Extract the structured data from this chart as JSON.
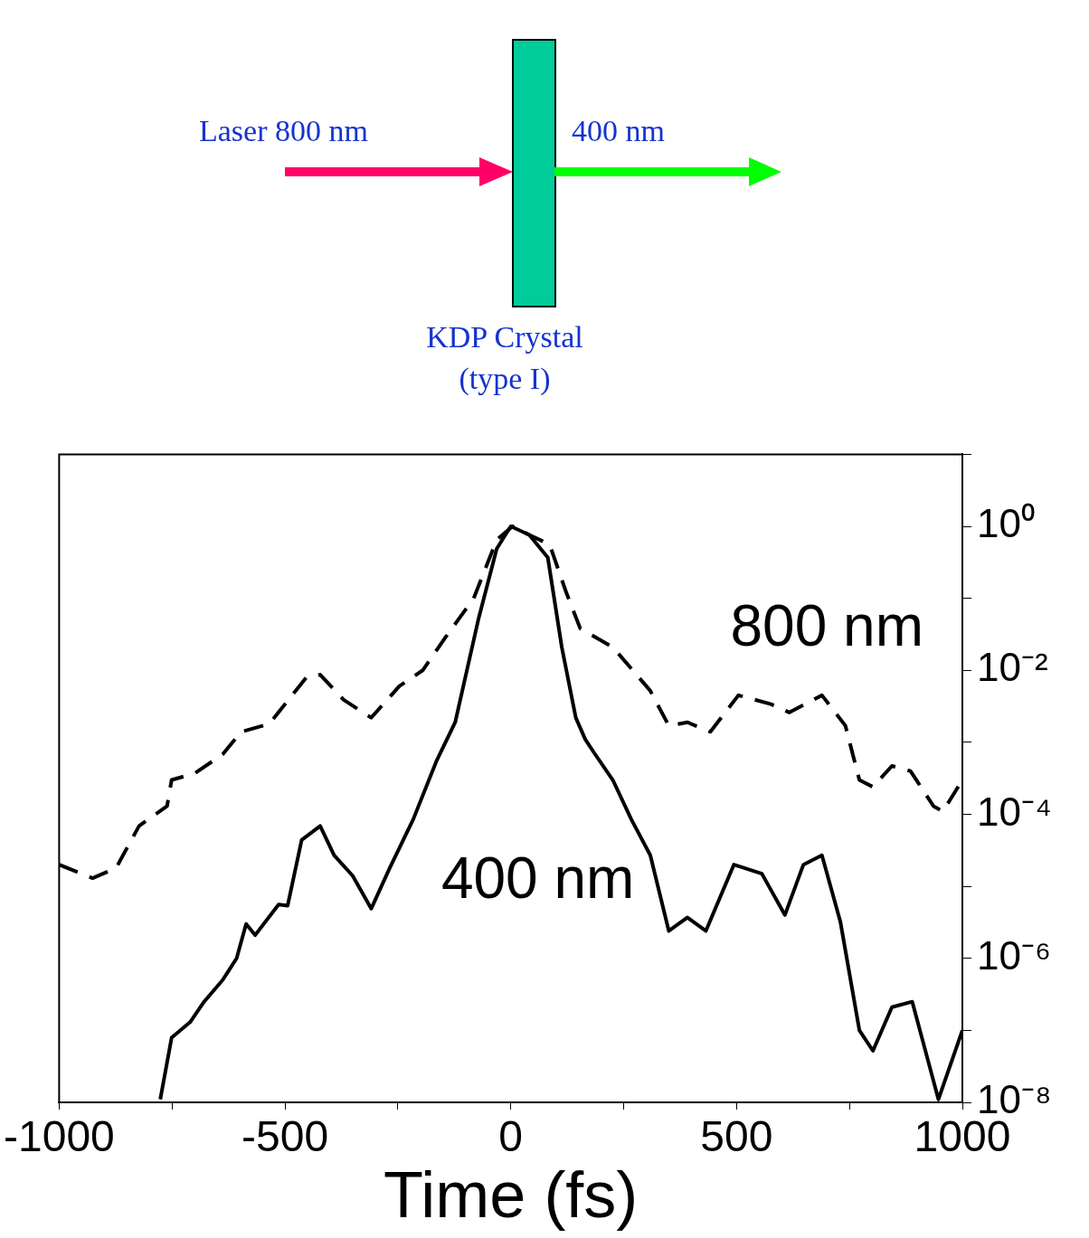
{
  "chart_data": {
    "type": "line",
    "xlabel": "Time (fs)",
    "annotations": [
      "Laser 800 nm",
      "400 nm",
      "KDP Crystal (type I)"
    ],
    "log": "y",
    "grid": false,
    "legend": false,
    "marker": "none",
    "xlim": [
      -1000,
      1000
    ],
    "xticks": [
      -1000,
      {
        "value": -750,
        "label": null
      },
      -500,
      {
        "value": -250,
        "label": null
      },
      0,
      {
        "value": 250,
        "label": null
      },
      500,
      {
        "value": 750,
        "label": null
      },
      1000
    ],
    "ylim": [
      1e-08,
      10
    ],
    "yticks": [
      {
        "value": 1e-08,
        "label": "10⁻⁸"
      },
      {
        "value": 1e-07,
        "label": null
      },
      {
        "value": 1e-06,
        "label": "10⁻⁶"
      },
      {
        "value": 1e-05,
        "label": null
      },
      {
        "value": 0.0001,
        "label": "10⁻⁴"
      },
      {
        "value": 0.001,
        "label": null
      },
      {
        "value": 0.01,
        "label": "10⁻²"
      },
      {
        "value": 0.1,
        "label": null
      },
      {
        "value": 1,
        "label": "10⁰"
      },
      {
        "value": 10,
        "label": null
      }
    ],
    "series": [
      {
        "name": "800 nm",
        "color": "#000000",
        "line_style": "dashed",
        "x": [
          -1000,
          -926,
          -874,
          -823,
          -761,
          -751,
          -700,
          -638,
          -597,
          -535,
          -453,
          -422,
          -370,
          -309,
          -247,
          -195,
          -144,
          -82,
          -31,
          4,
          41,
          86,
          123,
          154,
          226,
          309,
          350,
          391,
          442,
          504,
          576,
          617,
          689,
          741,
          772,
          802,
          844,
          885,
          936,
          957,
          1000
        ],
        "values": [
          2e-05,
          1.3e-05,
          1.8e-05,
          6.9e-05,
          0.00013,
          0.0003,
          0.00037,
          0.00068,
          0.0014,
          0.0018,
          0.0079,
          0.0087,
          0.0039,
          0.0022,
          0.006,
          0.01,
          0.029,
          0.1,
          0.65,
          1,
          0.76,
          0.56,
          0.12,
          0.038,
          0.021,
          0.0052,
          0.0017,
          0.0019,
          0.0014,
          0.0045,
          0.0034,
          0.0026,
          0.0045,
          0.0017,
          0.0003,
          0.00024,
          0.00047,
          0.0004,
          0.00013,
          0.00011,
          0.0003
        ]
      },
      {
        "name": "400 nm",
        "color": "#000000",
        "line_style": "solid",
        "x": [
          -776,
          -751,
          -710,
          -679,
          -638,
          -607,
          -586,
          -566,
          -514,
          -494,
          -463,
          -422,
          -391,
          -350,
          -309,
          -268,
          -216,
          -165,
          -123,
          -72,
          -31,
          0,
          41,
          82,
          113,
          144,
          165,
          185,
          226,
          267,
          309,
          350,
          391,
          432,
          494,
          556,
          607,
          648,
          689,
          730,
          772,
          802,
          844,
          889,
          947,
          1000
        ],
        "values": [
          1.1e-08,
          7.9e-08,
          1.3e-07,
          2.5e-07,
          5e-07,
          1e-06,
          3e-06,
          2.1e-06,
          5.6e-06,
          5.4e-06,
          4.4e-05,
          6.9e-05,
          2.7e-05,
          1.4e-05,
          4.9e-06,
          1.8e-05,
          8.5e-05,
          0.00054,
          0.0019,
          0.05,
          0.49,
          1,
          0.76,
          0.37,
          0.021,
          0.0022,
          0.0011,
          0.00071,
          0.0003,
          8.5e-05,
          2.7e-05,
          2.4e-06,
          3.7e-06,
          2.4e-06,
          2e-05,
          1.5e-05,
          4e-06,
          2e-05,
          2.7e-05,
          3.2e-06,
          1e-07,
          5.2e-08,
          2.1e-07,
          2.5e-07,
          1.1e-08,
          1e-07
        ]
      }
    ]
  }
}
